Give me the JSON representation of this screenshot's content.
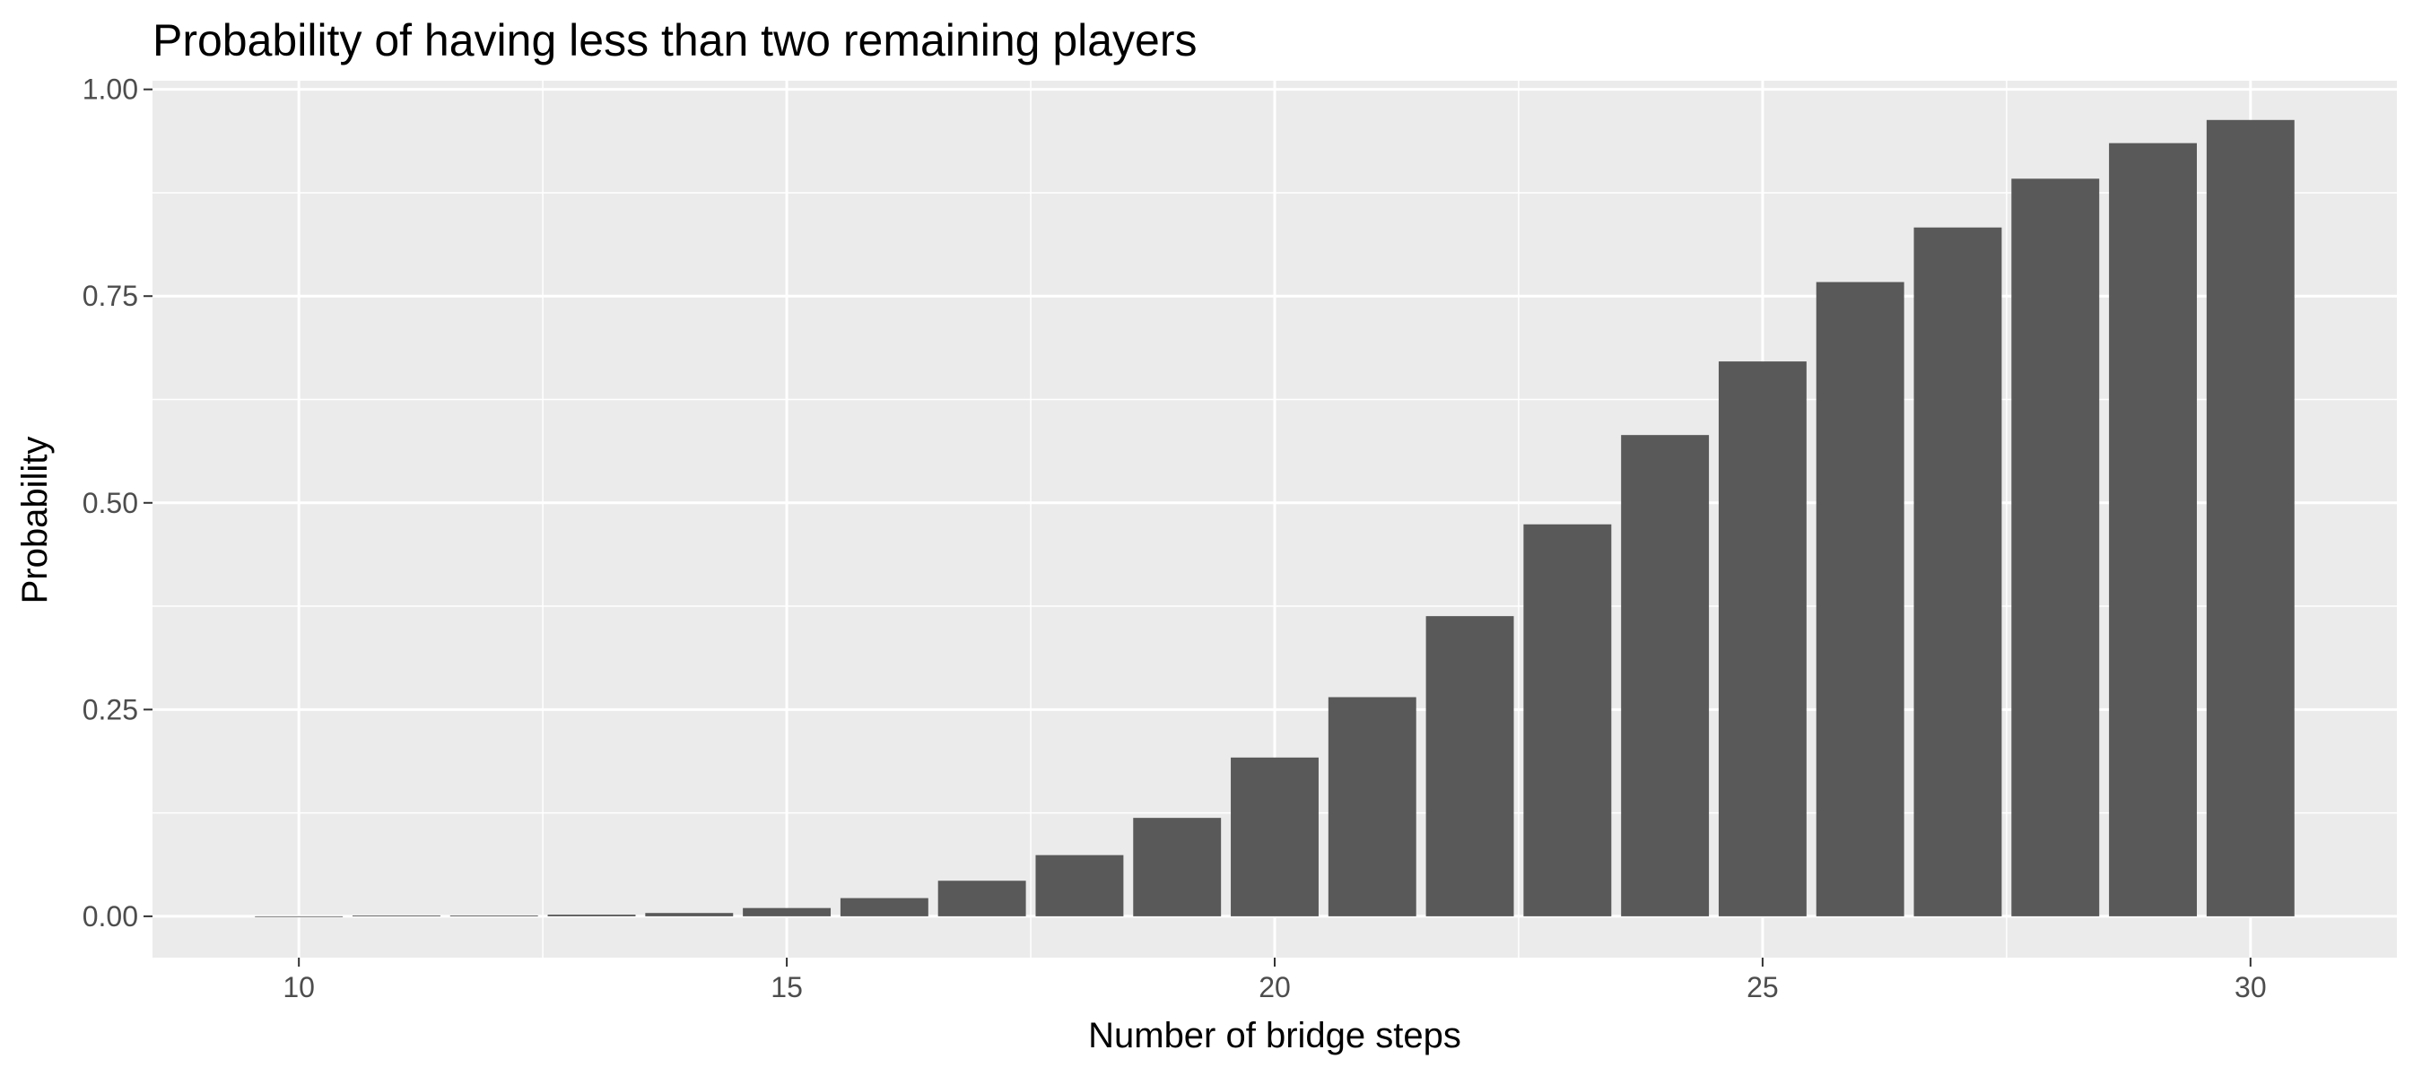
{
  "chart_data": {
    "type": "bar",
    "title": "Probability of having less than two remaining players",
    "xlabel": "Number of bridge steps",
    "ylabel": "Probability",
    "x": [
      10,
      11,
      12,
      13,
      14,
      15,
      16,
      17,
      18,
      19,
      20,
      21,
      22,
      23,
      24,
      25,
      26,
      27,
      28,
      29,
      30
    ],
    "values": [
      0.0,
      0.001,
      0.001,
      0.002,
      0.004,
      0.01,
      0.022,
      0.043,
      0.074,
      0.119,
      0.192,
      0.265,
      0.363,
      0.474,
      0.582,
      0.671,
      0.767,
      0.833,
      0.892,
      0.935,
      0.963
    ],
    "xlim": [
      8.5,
      31.5
    ],
    "ylim": [
      -0.05,
      1.0105
    ],
    "x_ticks": [
      10,
      15,
      20,
      25,
      30
    ],
    "x_tick_labels": [
      "10",
      "15",
      "20",
      "25",
      "30"
    ],
    "y_ticks": [
      0,
      0.25,
      0.5,
      0.75,
      1.0
    ],
    "y_tick_labels": [
      "0.00",
      "0.25",
      "0.50",
      "0.75",
      "1.00"
    ],
    "grid": true,
    "legend": "none",
    "colors": {
      "bar": "#595959",
      "panel_background": "#ebebeb",
      "grid": "#ffffff",
      "tick_text": "#4d4d4d",
      "text": "#000000"
    }
  }
}
